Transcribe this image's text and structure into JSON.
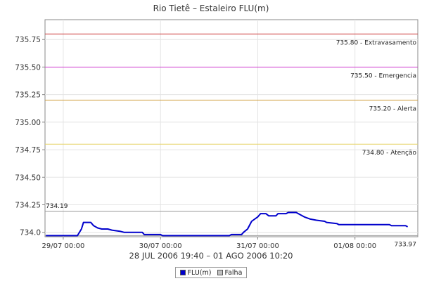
{
  "chart_data": {
    "type": "line",
    "title": "Rio Tietê – Estaleiro FLU(m)",
    "xlabel": "28 JUL 2006 19:40 – 01 AGO 2006 10:20",
    "ylabel": "",
    "x_ticks": [
      "29/07 00:00",
      "30/07 00:00",
      "31/07 00:00",
      "01/08 00:00"
    ],
    "x_tick_positions_hours": [
      0,
      24,
      48,
      72
    ],
    "xlim_hours": [
      -4.5,
      87.5
    ],
    "y_ticks": [
      734.0,
      734.25,
      734.5,
      734.75,
      735.0,
      735.25,
      735.5,
      735.75
    ],
    "y_tick_labels": [
      "734.0",
      "734.25",
      "734.50",
      "734.75",
      "735.00",
      "735.25",
      "735.50",
      "735.75"
    ],
    "ylim": [
      733.96,
      735.93
    ],
    "grid": true,
    "legend_position": "bottom",
    "series": [
      {
        "name": "FLU(m)",
        "color": "#0000cc",
        "points": [
          [
            -4.3,
            733.97
          ],
          [
            3.5,
            733.97
          ],
          [
            4.5,
            734.03
          ],
          [
            5.0,
            734.09
          ],
          [
            6.8,
            734.09
          ],
          [
            7.5,
            734.06
          ],
          [
            8.5,
            734.04
          ],
          [
            9.5,
            734.03
          ],
          [
            11.0,
            734.03
          ],
          [
            12.0,
            734.02
          ],
          [
            14.0,
            734.01
          ],
          [
            15.0,
            734.0
          ],
          [
            19.5,
            734.0
          ],
          [
            20.0,
            733.98
          ],
          [
            24.0,
            733.98
          ],
          [
            24.5,
            733.97
          ],
          [
            41.0,
            733.97
          ],
          [
            41.5,
            733.98
          ],
          [
            44.0,
            733.98
          ],
          [
            44.5,
            734.0
          ],
          [
            45.5,
            734.03
          ],
          [
            46.5,
            734.1
          ],
          [
            48.0,
            734.14
          ],
          [
            48.7,
            734.17
          ],
          [
            50.0,
            734.17
          ],
          [
            50.7,
            734.15
          ],
          [
            52.5,
            734.15
          ],
          [
            53.0,
            734.17
          ],
          [
            55.0,
            734.17
          ],
          [
            55.5,
            734.18
          ],
          [
            57.5,
            734.18
          ],
          [
            58.5,
            734.16
          ],
          [
            59.5,
            734.14
          ],
          [
            61.0,
            734.12
          ],
          [
            62.5,
            734.11
          ],
          [
            64.5,
            734.1
          ],
          [
            65.0,
            734.09
          ],
          [
            67.5,
            734.08
          ],
          [
            68.0,
            734.07
          ],
          [
            80.5,
            734.07
          ],
          [
            81.0,
            734.06
          ],
          [
            84.5,
            734.06
          ],
          [
            85.0,
            734.05
          ]
        ]
      },
      {
        "name": "Falha",
        "color": "#c0c0c0",
        "points": []
      }
    ],
    "reference_lines": [
      {
        "value": 735.8,
        "label": "735.80 - Extravasamento",
        "color": "#cc3333"
      },
      {
        "value": 735.5,
        "label": "735.50 - Emergencia",
        "color": "#cc33cc"
      },
      {
        "value": 735.2,
        "label": "735.20 - Alerta",
        "color": "#cc9933"
      },
      {
        "value": 734.8,
        "label": "734.80 - Atenção",
        "color": "#e6d466"
      },
      {
        "value": 734.19,
        "label": "734.19",
        "color": "#999999"
      },
      {
        "value": 733.97,
        "label": "733.97",
        "color": "#999999"
      }
    ]
  }
}
